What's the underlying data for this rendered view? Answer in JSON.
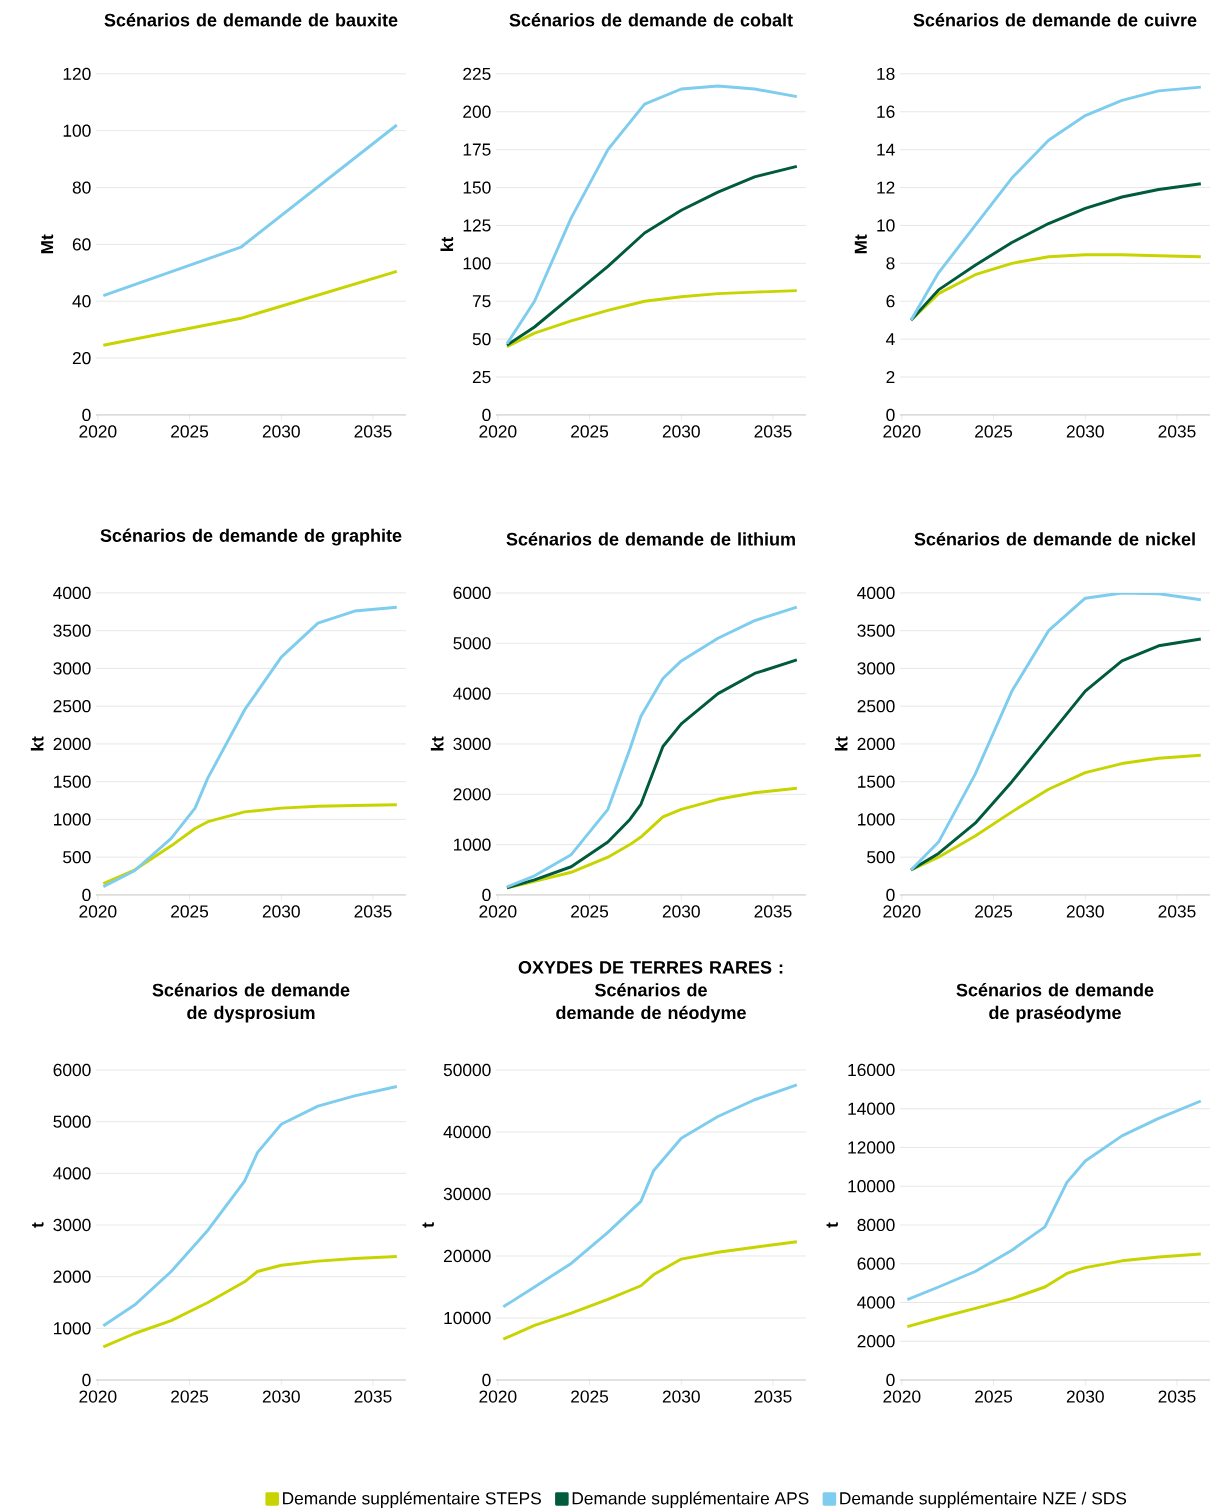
{
  "chart_data": [
    {
      "type": "line",
      "title": "Scénarios de demande de bauxite",
      "ylabel": "Mt",
      "x": [
        2020.3,
        2027.8,
        2036.3
      ],
      "xlim": [
        2019.9,
        2036.8
      ],
      "xticks": [
        2020,
        2025,
        2030,
        2035
      ],
      "ylim": [
        0,
        120
      ],
      "yticks": [
        0,
        20,
        40,
        60,
        80,
        100,
        120
      ],
      "grid": "y",
      "series": [
        {
          "color": "#c8d400",
          "values": [
            24.5,
            34,
            50.5
          ]
        },
        {
          "color": "#7fcdee",
          "values": [
            42,
            59,
            102
          ]
        }
      ]
    },
    {
      "type": "line",
      "title": "Scénarios de demande de cobalt",
      "ylabel": "kt",
      "x": [
        2020.5,
        2022,
        2024,
        2026,
        2028,
        2030,
        2032,
        2034,
        2036.3
      ],
      "xlim": [
        2019.9,
        2036.8
      ],
      "xticks": [
        2020,
        2025,
        2030,
        2035
      ],
      "ylim": [
        0,
        225
      ],
      "yticks": [
        0,
        25,
        50,
        75,
        100,
        125,
        150,
        175,
        200,
        225
      ],
      "grid": "y",
      "series": [
        {
          "color": "#c8d400",
          "values": [
            45,
            54,
            62,
            69,
            75,
            78,
            80,
            81,
            82
          ]
        },
        {
          "color": "#005a3c",
          "values": [
            46,
            58,
            78,
            98,
            120,
            135,
            147,
            157,
            164
          ]
        },
        {
          "color": "#7fcdee",
          "values": [
            47,
            75,
            130,
            175,
            205,
            215,
            217,
            215,
            210
          ]
        }
      ]
    },
    {
      "type": "line",
      "title": "Scénarios de demande de cuivre",
      "ylabel": "Mt",
      "x": [
        2020.5,
        2022,
        2024,
        2026,
        2028,
        2030,
        2032,
        2034,
        2036.3
      ],
      "xlim": [
        2019.9,
        2036.8
      ],
      "xticks": [
        2020,
        2025,
        2030,
        2035
      ],
      "ylim": [
        0,
        18
      ],
      "yticks": [
        0,
        2,
        4,
        6,
        8,
        10,
        12,
        14,
        16,
        18
      ],
      "grid": "y",
      "series": [
        {
          "color": "#c8d400",
          "values": [
            5,
            6.4,
            7.4,
            8.0,
            8.35,
            8.45,
            8.45,
            8.4,
            8.35
          ]
        },
        {
          "color": "#005a3c",
          "values": [
            5,
            6.6,
            7.9,
            9.1,
            10.1,
            10.9,
            11.5,
            11.9,
            12.2
          ]
        },
        {
          "color": "#7fcdee",
          "values": [
            5,
            7.5,
            10,
            12.5,
            14.5,
            15.8,
            16.6,
            17.1,
            17.3
          ]
        }
      ]
    },
    {
      "type": "line",
      "title": "Scénarios de demande de graphite",
      "ylabel": "kt",
      "x": [
        2020.3,
        2022,
        2024,
        2025.3,
        2026,
        2028,
        2030,
        2032,
        2034,
        2036.3
      ],
      "xlim": [
        2019.9,
        2036.8
      ],
      "xticks": [
        2020,
        2025,
        2030,
        2035
      ],
      "ylim": [
        0,
        4000
      ],
      "yticks": [
        0,
        500,
        1000,
        1500,
        2000,
        2500,
        3000,
        3500,
        4000
      ],
      "grid": "y",
      "series": [
        {
          "color": "#c8d400",
          "values": [
            150,
            330,
            650,
            880,
            970,
            1100,
            1150,
            1175,
            1185,
            1195
          ]
        },
        {
          "color": "#7fcdee",
          "values": [
            110,
            320,
            750,
            1150,
            1550,
            2450,
            3150,
            3600,
            3760,
            3810
          ]
        }
      ]
    },
    {
      "type": "line",
      "title": "Scénarios de demande de lithium",
      "ylabel": "kt",
      "x": [
        2020.5,
        2022,
        2024,
        2026,
        2027.2,
        2027.8,
        2029,
        2030,
        2032,
        2034,
        2036.3
      ],
      "xlim": [
        2019.9,
        2036.8
      ],
      "xticks": [
        2020,
        2025,
        2030,
        2035
      ],
      "ylim": [
        0,
        6000
      ],
      "yticks": [
        0,
        1000,
        2000,
        3000,
        4000,
        5000,
        6000
      ],
      "grid": "y",
      "legend": "bottom",
      "series": [
        {
          "name": "Demande supplémentaire STEPS",
          "color": "#c8d400",
          "values": [
            140,
            270,
            450,
            750,
            1000,
            1150,
            1550,
            1700,
            1900,
            2030,
            2120
          ]
        },
        {
          "name": "Demande supplémentaire APS",
          "color": "#005a3c",
          "values": [
            140,
            300,
            560,
            1050,
            1500,
            1800,
            2950,
            3400,
            4000,
            4400,
            4670
          ]
        },
        {
          "name": "Demande supplémentaire NZE / SDS",
          "color": "#7fcdee",
          "values": [
            160,
            380,
            800,
            1700,
            2900,
            3550,
            4300,
            4650,
            5100,
            5450,
            5720
          ]
        }
      ]
    },
    {
      "type": "line",
      "title": "Scénarios de demande de nickel",
      "ylabel": "kt",
      "x": [
        2020.5,
        2022,
        2024,
        2026,
        2028,
        2030,
        2032,
        2034,
        2036.3
      ],
      "xlim": [
        2019.9,
        2036.8
      ],
      "xticks": [
        2020,
        2025,
        2030,
        2035
      ],
      "ylim": [
        0,
        4000
      ],
      "yticks": [
        0,
        500,
        1000,
        1500,
        2000,
        2500,
        3000,
        3500,
        4000
      ],
      "grid": "y",
      "series": [
        {
          "color": "#c8d400",
          "values": [
            330,
            500,
            780,
            1100,
            1400,
            1620,
            1740,
            1810,
            1850
          ]
        },
        {
          "color": "#005a3c",
          "values": [
            330,
            550,
            950,
            1500,
            2100,
            2700,
            3100,
            3300,
            3390
          ]
        },
        {
          "color": "#7fcdee",
          "values": [
            330,
            700,
            1600,
            2700,
            3500,
            3930,
            4000,
            3990,
            3910
          ]
        }
      ]
    },
    {
      "type": "line",
      "title": "Scénarios de demande de dysprosium",
      "ylabel": "t",
      "x": [
        2020.3,
        2022,
        2024,
        2026,
        2028,
        2028.7,
        2030,
        2032,
        2034,
        2036.3
      ],
      "xlim": [
        2019.9,
        2036.8
      ],
      "xticks": [
        2020,
        2025,
        2030,
        2035
      ],
      "ylim": [
        0,
        6000
      ],
      "yticks": [
        0,
        1000,
        2000,
        3000,
        4000,
        5000,
        6000
      ],
      "grid": "y",
      "series": [
        {
          "color": "#c8d400",
          "values": [
            640,
            900,
            1150,
            1500,
            1900,
            2100,
            2220,
            2300,
            2350,
            2390
          ]
        },
        {
          "color": "#7fcdee",
          "values": [
            1050,
            1450,
            2100,
            2900,
            3850,
            4400,
            4950,
            5300,
            5500,
            5680
          ]
        }
      ]
    },
    {
      "type": "line",
      "title": "OXYDES DE TERRES RARES :",
      "subtitle": "Scénarios de demande de néodyme",
      "ylabel": "t",
      "x": [
        2020.3,
        2022,
        2024,
        2026,
        2027.8,
        2028.5,
        2030,
        2032,
        2034,
        2036.3
      ],
      "xlim": [
        2019.9,
        2036.8
      ],
      "xticks": [
        2020,
        2025,
        2030,
        2035
      ],
      "ylim": [
        0,
        50000
      ],
      "yticks": [
        0,
        10000,
        20000,
        30000,
        40000,
        50000
      ],
      "grid": "y",
      "series": [
        {
          "color": "#c8d400",
          "values": [
            6600,
            8800,
            10800,
            13000,
            15200,
            17000,
            19500,
            20600,
            21400,
            22300
          ]
        },
        {
          "color": "#7fcdee",
          "values": [
            11800,
            15000,
            18800,
            23800,
            28800,
            33800,
            39000,
            42500,
            45200,
            47600
          ]
        }
      ]
    },
    {
      "type": "line",
      "title": "Scénarios de demande de praséodyme",
      "ylabel": "t",
      "x": [
        2020.3,
        2022,
        2024,
        2026,
        2027.8,
        2029,
        2030,
        2032,
        2034,
        2036.3
      ],
      "xlim": [
        2019.9,
        2036.8
      ],
      "xticks": [
        2020,
        2025,
        2030,
        2035
      ],
      "ylim": [
        0,
        16000
      ],
      "yticks": [
        0,
        2000,
        4000,
        6000,
        8000,
        10000,
        12000,
        14000,
        16000
      ],
      "grid": "y",
      "series": [
        {
          "color": "#c8d400",
          "values": [
            2750,
            3200,
            3700,
            4200,
            4800,
            5500,
            5800,
            6150,
            6350,
            6500
          ]
        },
        {
          "color": "#7fcdee",
          "values": [
            4150,
            4800,
            5600,
            6700,
            7900,
            10200,
            11300,
            12600,
            13500,
            14400
          ]
        }
      ]
    }
  ]
}
